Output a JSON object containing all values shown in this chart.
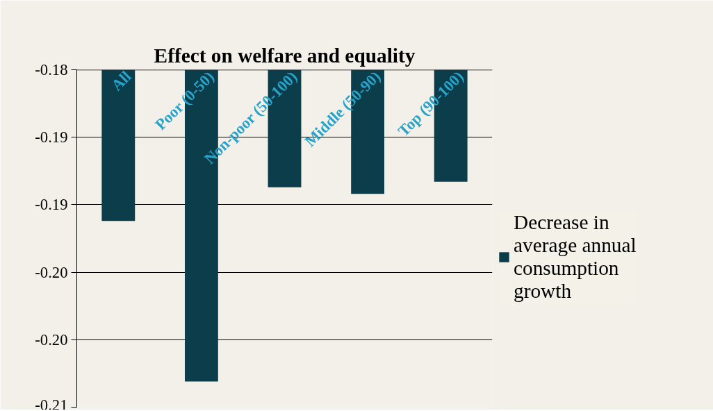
{
  "chart_data": {
    "type": "bar",
    "title": "Effect on welfare and equality",
    "categories": [
      "All",
      "Poor (0-50)",
      "Non-poor (50-100)",
      "Middle (50-90)",
      "Top (90-100)"
    ],
    "series": [
      {
        "name": "Decrease in average annual consumption growth",
        "color": "#0b3d4a",
        "values": [
          -0.1912,
          -0.2031,
          -0.1887,
          -0.1892,
          -0.1883
        ]
      }
    ],
    "ylim": [
      -0.205,
      -0.18
    ],
    "yticks": [
      -0.18,
      {
        "value": -0.185,
        "label": "-0.19"
      },
      {
        "value": -0.19,
        "label": "-0.19"
      },
      {
        "value": -0.195,
        "label": "-0.20"
      },
      {
        "value": -0.2,
        "label": "-0.20"
      },
      {
        "value": -0.205,
        "label": "-0.21"
      }
    ],
    "grid": "y",
    "legend": "right"
  }
}
